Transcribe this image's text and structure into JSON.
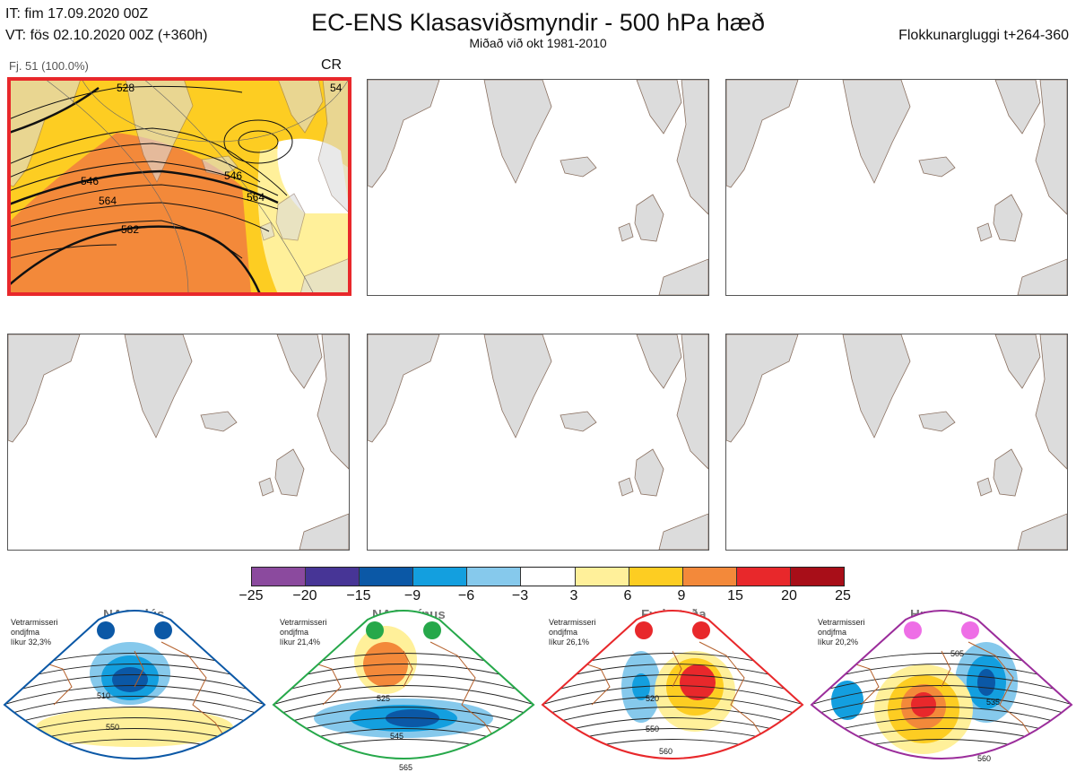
{
  "header": {
    "it_line": "IT: fim 17.09.2020 00Z",
    "vt_line": "VT: fös 02.10.2020 00Z  (+360h)",
    "title": "EC-ENS Klasasviðsmyndir - 500 hPa hæð",
    "subtitle": "Miðað við okt 1981-2010",
    "window": "Flokkunargluggi t+264-360"
  },
  "main_panel": {
    "label": "Fj. 51 (100.0%)",
    "regime_code": "CR",
    "contour_labels": [
      "528",
      "546",
      "564",
      "582",
      "546",
      "564",
      "54"
    ]
  },
  "colorbar": {
    "ticks": [
      "−25",
      "−20",
      "−15",
      "−9",
      "−6",
      "−3",
      "3",
      "6",
      "9",
      "15",
      "20",
      "25"
    ],
    "colors": [
      "#8b4a9e",
      "#473596",
      "#0b58a6",
      "#139fdf",
      "#86c9ec",
      "#ffffff",
      "#fff09a",
      "#fdcd22",
      "#f3893a",
      "#e8282b",
      "#a80e18"
    ]
  },
  "regimes": [
    {
      "name": "NAO plús",
      "season": "Vetrarmisseri",
      "desc": "ondjfma",
      "prob": "líkur 32,3%",
      "color": "#0b58a6",
      "labels": [
        "510",
        "550"
      ]
    },
    {
      "name": "NAO mínus",
      "season": "Vetrarmisseri",
      "desc": "ondjfma",
      "prob": "líkur 21,4%",
      "color": "#26a84a",
      "labels": [
        "525",
        "545",
        "565"
      ]
    },
    {
      "name": "Fyrirstaða",
      "season": "Vetrarmisseri",
      "desc": "ondjfma",
      "prob": "líkur 26,1%",
      "color": "#e8282b",
      "labels": [
        "520",
        "550",
        "560"
      ]
    },
    {
      "name": "Hryggur",
      "season": "Vetrarmisseri",
      "desc": "ondjfma",
      "prob": "líkur 20,2%",
      "color": "#9b2d9b",
      "labels": [
        "505",
        "535",
        "560"
      ]
    }
  ],
  "chart_data": {
    "type": "heatmap",
    "title": "EC-ENS Klasasviðsmyndir - 500 hPa hæð",
    "subtitle": "Miðað við okt 1981-2010",
    "colorbar_bounds": [
      -25,
      -20,
      -15,
      -9,
      -6,
      -3,
      3,
      6,
      9,
      15,
      20,
      25
    ],
    "main_cluster": {
      "members": "Fj. 51",
      "percent": 100.0,
      "regime": "CR"
    },
    "regime_probabilities": {
      "NAO plús": 32.3,
      "NAO mínus": 21.4,
      "Fyrirstaða": 26.1,
      "Hryggur": 20.2
    }
  }
}
